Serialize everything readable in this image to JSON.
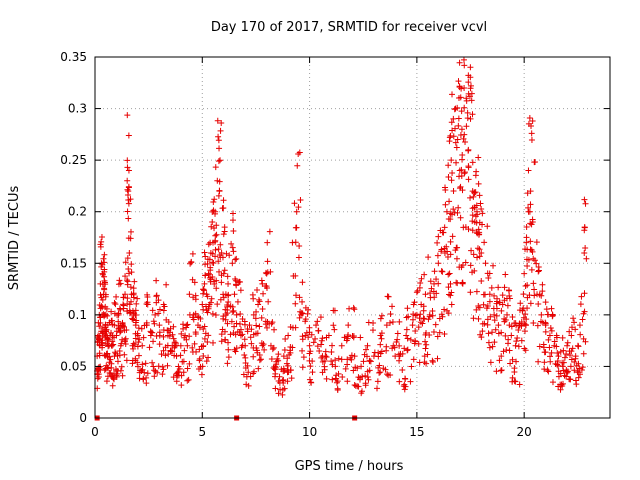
{
  "chart_data": {
    "type": "scatter",
    "title": "Day 170 of 2017, SRMTID for receiver vcvl",
    "xlabel": "GPS time / hours",
    "ylabel": "SRMTID / TECUs",
    "xlim": [
      0,
      24
    ],
    "ylim": [
      0,
      0.35
    ],
    "x_ticks": [
      0,
      5,
      10,
      15,
      20
    ],
    "x_tick_labels": [
      "0",
      "5",
      "10",
      "15",
      "20"
    ],
    "y_ticks": [
      0,
      0.05,
      0.1,
      0.15,
      0.2,
      0.25,
      0.3,
      0.35
    ],
    "y_tick_labels": [
      "0",
      "0.05",
      "0.1",
      "0.15",
      "0.2",
      "0.25",
      "0.3",
      "0.35"
    ],
    "grid": true,
    "marker": "+",
    "colors": {
      "series": "#e60000",
      "grid": "#a0a0a0",
      "axis": "#000000"
    },
    "series": [
      {
        "name": "SRMTID",
        "x": [
          0.1,
          0.15,
          0.2,
          0.25,
          0.3,
          0.35,
          0.4,
          0.45,
          0.5,
          0.55,
          0.6,
          0.7,
          0.8,
          0.9,
          1.0,
          1.1,
          1.2,
          1.3,
          1.4,
          1.5,
          1.55,
          1.6,
          1.7,
          1.8,
          1.9,
          2.0,
          2.2,
          2.4,
          2.6,
          2.8,
          3.0,
          3.2,
          3.4,
          3.6,
          3.8,
          4.0,
          4.2,
          4.4,
          4.6,
          4.8,
          5.0,
          5.1,
          5.2,
          5.3,
          5.4,
          5.5,
          5.6,
          5.7,
          5.8,
          5.9,
          6.0,
          6.1,
          6.2,
          6.4,
          6.5,
          6.6,
          6.8,
          7.0,
          7.2,
          7.4,
          7.6,
          7.8,
          8.0,
          8.2,
          8.4,
          8.6,
          8.8,
          9.0,
          9.2,
          9.4,
          9.6,
          9.8,
          10.0,
          10.3,
          10.6,
          10.9,
          11.2,
          11.5,
          11.8,
          12.1,
          12.4,
          12.7,
          13.0,
          13.3,
          13.6,
          13.9,
          14.2,
          14.5,
          14.8,
          15.0,
          15.2,
          15.4,
          15.6,
          15.8,
          16.0,
          16.2,
          16.4,
          16.5,
          16.6,
          16.7,
          16.8,
          16.9,
          17.0,
          17.1,
          17.2,
          17.3,
          17.4,
          17.5,
          17.6,
          17.7,
          17.8,
          17.9,
          18.0,
          18.2,
          18.4,
          18.6,
          18.8,
          19.0,
          19.2,
          19.4,
          19.6,
          19.8,
          20.0,
          20.1,
          20.2,
          20.3,
          20.4,
          20.6,
          20.8,
          21.0,
          21.2,
          21.4,
          21.6,
          21.8,
          22.0,
          22.2,
          22.4,
          22.6,
          22.8
        ],
        "y": [
          0.06,
          0.08,
          0.1,
          0.13,
          0.15,
          0.14,
          0.12,
          0.1,
          0.09,
          0.08,
          0.09,
          0.08,
          0.07,
          0.09,
          0.08,
          0.1,
          0.07,
          0.09,
          0.12,
          0.23,
          0.22,
          0.16,
          0.12,
          0.1,
          0.09,
          0.08,
          0.07,
          0.09,
          0.08,
          0.1,
          0.09,
          0.11,
          0.08,
          0.07,
          0.06,
          0.07,
          0.08,
          0.12,
          0.1,
          0.09,
          0.11,
          0.13,
          0.12,
          0.14,
          0.16,
          0.17,
          0.2,
          0.23,
          0.22,
          0.16,
          0.14,
          0.12,
          0.13,
          0.15,
          0.12,
          0.1,
          0.08,
          0.07,
          0.09,
          0.1,
          0.11,
          0.13,
          0.14,
          0.07,
          0.05,
          0.04,
          0.06,
          0.08,
          0.17,
          0.2,
          0.1,
          0.08,
          0.07,
          0.09,
          0.06,
          0.08,
          0.05,
          0.07,
          0.09,
          0.06,
          0.05,
          0.07,
          0.06,
          0.08,
          0.09,
          0.07,
          0.06,
          0.08,
          0.09,
          0.1,
          0.11,
          0.12,
          0.1,
          0.13,
          0.15,
          0.18,
          0.2,
          0.21,
          0.25,
          0.29,
          0.3,
          0.27,
          0.24,
          0.28,
          0.32,
          0.31,
          0.26,
          0.29,
          0.22,
          0.19,
          0.2,
          0.18,
          0.16,
          0.15,
          0.12,
          0.1,
          0.09,
          0.11,
          0.1,
          0.08,
          0.07,
          0.09,
          0.14,
          0.17,
          0.24,
          0.22,
          0.19,
          0.12,
          0.1,
          0.09,
          0.08,
          0.07,
          0.06,
          0.05,
          0.07,
          0.08,
          0.06,
          0.09,
          0.16
        ]
      }
    ],
    "markers_on_axis": [
      0.1,
      6.6,
      12.1
    ]
  }
}
